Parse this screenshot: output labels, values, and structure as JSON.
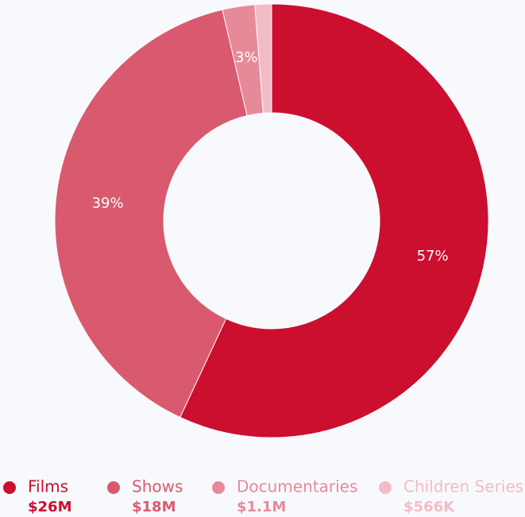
{
  "chart_data": {
    "type": "donut",
    "categories": [
      "Films",
      "Shows",
      "Documentaries",
      "Children Series"
    ],
    "values": [
      26000000,
      18000000,
      1100000,
      566000
    ],
    "value_labels": [
      "$26M",
      "$18M",
      "$1.1M",
      "$566K"
    ],
    "percentages": [
      57,
      39,
      3,
      null
    ],
    "percent_labels": [
      "57%",
      "39%",
      "3%",
      null
    ],
    "colors": [
      "#cc0e2f",
      "#d95a6e",
      "#e68a99",
      "#f2bcc5"
    ],
    "legend": "bottom"
  }
}
